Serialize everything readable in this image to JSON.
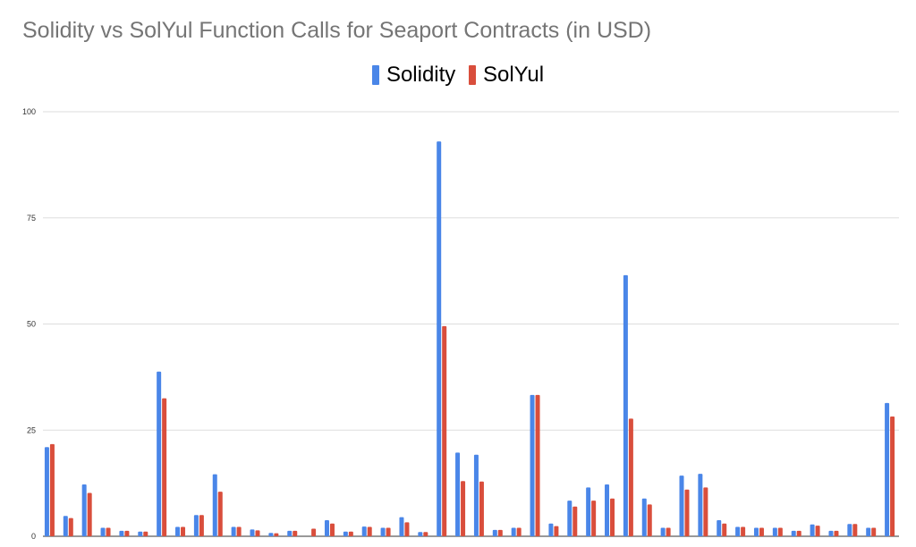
{
  "chart_data": {
    "type": "bar",
    "title": "Solidity vs SolYul Function Calls for Seaport Contracts (in USD)",
    "xlabel": "",
    "ylabel": "",
    "ylim": [
      0,
      100
    ],
    "yticks": [
      "0",
      "25",
      "50",
      "75",
      "100"
    ],
    "grid": true,
    "legend_position": "top",
    "series": [
      {
        "name": "Solidity",
        "color": "#4a86e8",
        "values": [
          21,
          4.8,
          12.2,
          2,
          1.3,
          1.1,
          38.8,
          2.2,
          5,
          14.6,
          2.2,
          1.6,
          0.8,
          1.3,
          0,
          3.8,
          1.1,
          2.3,
          2,
          4.5,
          1,
          93,
          19.7,
          19.2,
          1.5,
          2,
          33.3,
          3,
          8.4,
          11.5,
          12.2,
          61.5,
          8.9,
          2,
          14.3,
          14.7,
          3.8,
          2.2,
          2,
          2,
          1.3,
          2.8,
          1.3,
          2.9,
          2,
          31.4
        ]
      },
      {
        "name": "SolYul",
        "color": "#d94e3c",
        "values": [
          21.7,
          4.3,
          10.2,
          2,
          1.3,
          1.1,
          32.5,
          2.2,
          5,
          10.5,
          2.2,
          1.4,
          0.7,
          1.3,
          1.8,
          3,
          1.1,
          2.2,
          2,
          3.3,
          1,
          49.5,
          13,
          12.9,
          1.5,
          2,
          33.3,
          2.4,
          7,
          8.4,
          8.9,
          27.7,
          7.5,
          2,
          11,
          11.5,
          3,
          2.2,
          2,
          2,
          1.3,
          2.5,
          1.3,
          2.9,
          2,
          28.2
        ]
      }
    ]
  }
}
